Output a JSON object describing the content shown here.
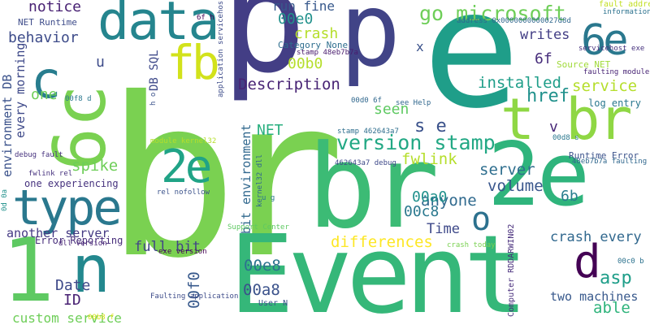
{
  "colors": {
    "background": "#ffffff",
    "palette": [
      "#440154",
      "#3b528b",
      "#21918c",
      "#5ec962",
      "#fde725"
    ]
  },
  "words": [
    {
      "text": "br",
      "color": "#7ad151"
    },
    {
      "text": "Event",
      "color": "#35b779"
    },
    {
      "text": "e",
      "color": "#1f9e89"
    },
    {
      "text": "p",
      "color": "#433e85"
    },
    {
      "text": "p",
      "color": "#414487"
    },
    {
      "text": "br",
      "color": "#3cbb75"
    },
    {
      "text": "2e",
      "color": "#2fb47c"
    },
    {
      "text": "1",
      "color": "#5ec962"
    },
    {
      "text": "t br",
      "color": "#8fd744"
    },
    {
      "text": "6c",
      "color": "#7ad151"
    },
    {
      "text": "data",
      "color": "#25858e"
    },
    {
      "text": "type",
      "color": "#2a788e"
    },
    {
      "text": "c",
      "color": "#287d8e"
    },
    {
      "text": "n",
      "color": "#23888e"
    },
    {
      "text": "fb",
      "color": "#d2e21b"
    },
    {
      "text": "6e",
      "color": "#2a788e"
    },
    {
      "text": "2e",
      "color": "#20a386"
    },
    {
      "text": "o",
      "color": "#2c718e"
    },
    {
      "text": "d",
      "color": "#440154"
    },
    {
      "text": "go microsoft",
      "color": "#6ece58"
    },
    {
      "text": "version stamp",
      "color": "#22a884"
    },
    {
      "text": "Description",
      "color": "#482475"
    },
    {
      "text": "differences",
      "color": "#fde725"
    },
    {
      "text": "custom service",
      "color": "#6ece58"
    },
    {
      "text": "installed",
      "color": "#1f9e89"
    },
    {
      "text": "writes",
      "color": "#433e85"
    },
    {
      "text": "service",
      "color": "#b5de2b"
    },
    {
      "text": "href",
      "color": "#21918c"
    },
    {
      "text": "asp",
      "color": "#1f9e89"
    },
    {
      "text": "crash every",
      "color": "#31688e"
    },
    {
      "text": "server",
      "color": "#2e6e8e"
    },
    {
      "text": "volume",
      "color": "#39568c"
    },
    {
      "text": "anyone",
      "color": "#306a8e"
    },
    {
      "text": "Time",
      "color": "#3e4989"
    },
    {
      "text": "full bit",
      "color": "#414487"
    },
    {
      "text": "00e8",
      "color": "#2c728e"
    },
    {
      "text": "00a8",
      "color": "#3b528b"
    },
    {
      "text": "00f0",
      "color": "#38598c"
    },
    {
      "text": "able",
      "color": "#2fb47c"
    },
    {
      "text": "two machines",
      "color": "#38598c"
    },
    {
      "text": "spike",
      "color": "#6ece58"
    },
    {
      "text": "behavior",
      "color": "#3e4c8a"
    },
    {
      "text": "notice",
      "color": "#482173"
    },
    {
      "text": "Date",
      "color": "#3e4989"
    },
    {
      "text": "ID",
      "color": "#482173"
    },
    {
      "text": "another server",
      "color": "#443983"
    },
    {
      "text": "seen",
      "color": "#5ec962"
    },
    {
      "text": "s e",
      "color": "#3b528b"
    },
    {
      "text": "fwlink",
      "color": "#b5de2b"
    },
    {
      "text": "crash",
      "color": "#b5de2b"
    },
    {
      "text": "run fine",
      "color": "#38598c"
    },
    {
      "text": "00e0",
      "color": "#21918c"
    },
    {
      "text": "00b0",
      "color": "#b5de2b"
    },
    {
      "text": "00a0",
      "color": "#21918c"
    },
    {
      "text": "00c8",
      "color": "#2a788e"
    },
    {
      "text": "6b",
      "color": "#287d8e"
    },
    {
      "text": "6f",
      "color": "#472d7b"
    },
    {
      "text": "NET",
      "color": "#29af7f"
    },
    {
      "text": "v",
      "color": "#482878"
    },
    {
      "text": "u",
      "color": "#3e4c8a"
    },
    {
      "text": "x",
      "color": "#3b528b"
    },
    {
      "text": "one",
      "color": "#6ece58"
    },
    {
      "text": "every morning",
      "color": "#3e4989"
    },
    {
      "text": "environment DB",
      "color": "#3b528b"
    },
    {
      "text": "bit environment",
      "color": "#31688e"
    },
    {
      "text": "DB SQL",
      "color": "#3e4989"
    },
    {
      "text": "one experiencing",
      "color": "#46327e"
    },
    {
      "text": "Error Reporting",
      "color": "#472d7b"
    },
    {
      "text": "Runtime Error",
      "color": "#3b528b"
    },
    {
      "text": "Source NET",
      "color": "#a0da39"
    },
    {
      "text": "log entry",
      "color": "#2a788e"
    },
    {
      "text": "faulting module",
      "color": "#482475"
    },
    {
      "text": "servicehost exe",
      "color": "#46327e"
    },
    {
      "text": "fault address",
      "color": "#c2df23"
    },
    {
      "text": "information see",
      "color": "#2c728e"
    },
    {
      "text": "address 0x0000000000027d8d",
      "color": "#31688e"
    },
    {
      "text": "NET Runtime",
      "color": "#3e4c8a"
    },
    {
      "text": "Category None",
      "color": "#2e6e8e"
    },
    {
      "text": "stamp 48eb7b7a",
      "color": "#481b6d"
    },
    {
      "text": "00d0 6f",
      "color": "#31688e"
    },
    {
      "text": "see Help",
      "color": "#31688e"
    },
    {
      "text": "00f8 d",
      "color": "#2a788e"
    },
    {
      "text": "stamp 462643a7",
      "color": "#2e6e8e"
    },
    {
      "text": "462643a7 debug",
      "color": "#3e4989"
    },
    {
      "text": "debug fault",
      "color": "#46327e"
    },
    {
      "text": "fwlink rel",
      "color": "#46327e"
    },
    {
      "text": "rel nofollow",
      "color": "#3b528b"
    },
    {
      "text": "module kernel32",
      "color": "#b5de2b"
    },
    {
      "text": "kernel32 dll",
      "color": "#31688e"
    },
    {
      "text": "dll version",
      "color": "#482475"
    },
    {
      "text": "crash today",
      "color": "#7ad151"
    },
    {
      "text": "exe version",
      "color": "#440154"
    },
    {
      "text": "Faulting application",
      "color": "#3e4c8a"
    },
    {
      "text": "Support Center",
      "color": "#5ec962"
    },
    {
      "text": "User N",
      "color": "#3b528b"
    },
    {
      "text": "Computer RDDARWIN02",
      "color": "#472d7b"
    },
    {
      "text": "48eb7b7a faulting",
      "color": "#31688e"
    },
    {
      "text": "00d8 s",
      "color": "#2a788e"
    },
    {
      "text": "00c0 b",
      "color": "#2c728e"
    },
    {
      "text": "00b8 f",
      "color": "#d8e219"
    },
    {
      "text": "0d 0a",
      "color": "#21918c"
    },
    {
      "text": "6f h",
      "color": "#440154"
    },
    {
      "text": "application servicehost",
      "color": "#3e4c8a"
    },
    {
      "text": "h o",
      "color": "#3b528b"
    },
    {
      "text": "u g",
      "color": "#2a788e"
    }
  ]
}
